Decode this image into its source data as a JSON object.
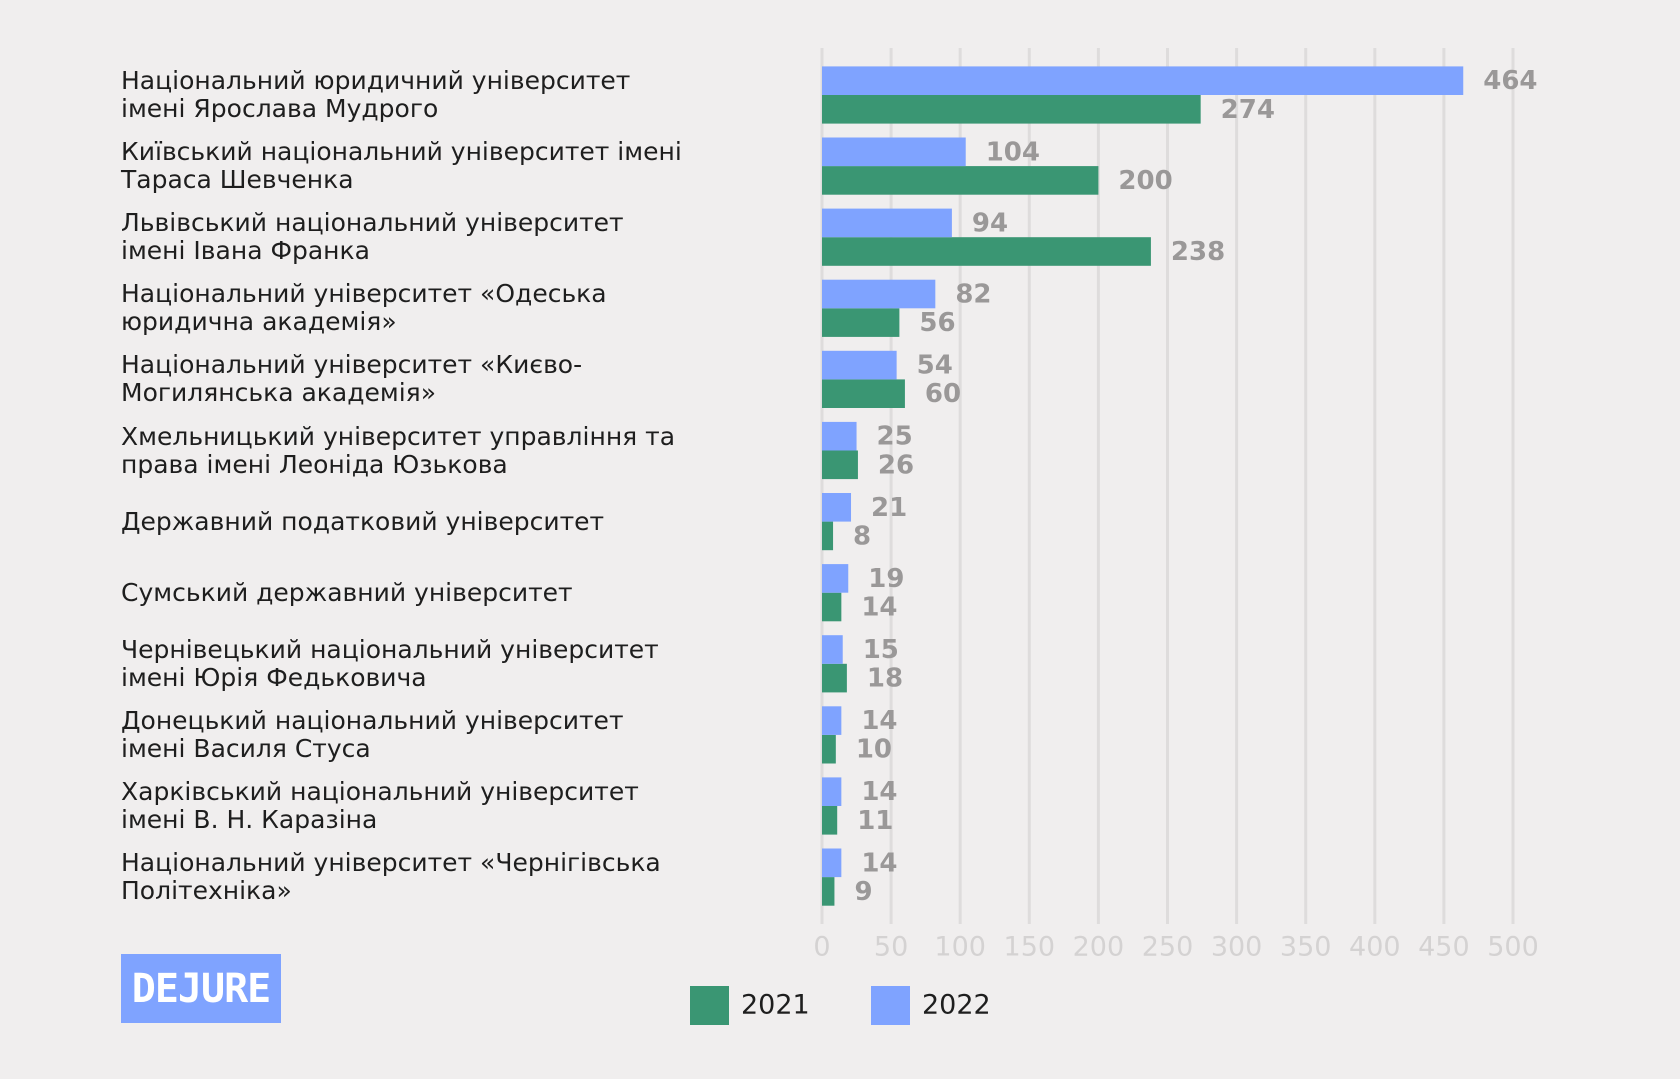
{
  "chart_data": {
    "type": "barh",
    "categories": [
      "Національний юридичний університет\nімені Ярослава Мудрого",
      "Київський національний університет імені\nТараса Шевченка",
      "Львівський національний університет\nімені Івана Франка",
      "Національний університет «Одеська\nюридична академія»",
      "Національний університет «Києво-\nМогилянська академія»",
      " Хмельницький університет управління та\nправа імені Леоніда Юзькова",
      "Державний податковий університет",
      "Сумський державний університет",
      "Чернівецький національний університет\nімені Юрія Федьковича",
      "Донецький національний університет\nімені Василя Стуса",
      "Харківський національний університет\nімені В. Н. Каразіна",
      "Національний університет «Чернігівська\nПолітехніка»"
    ],
    "series": [
      {
        "name": "2021",
        "color": "#3a9673",
        "values": [
          274,
          200,
          238,
          56,
          60,
          26,
          8,
          14,
          18,
          10,
          11,
          9
        ]
      },
      {
        "name": "2022",
        "color": "#7fa3ff",
        "values": [
          464,
          104,
          94,
          82,
          54,
          25,
          21,
          19,
          15,
          14,
          14,
          14
        ]
      }
    ],
    "xlim": [
      0,
      500
    ],
    "xticks": [
      0,
      50,
      100,
      150,
      200,
      250,
      300,
      350,
      400,
      450,
      500
    ],
    "grid": true
  },
  "logo": "DEJURE"
}
